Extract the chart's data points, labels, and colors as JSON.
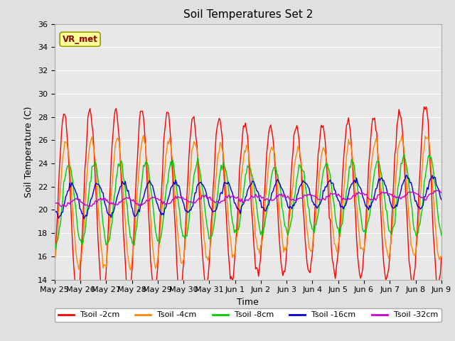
{
  "title": "Soil Temperatures Set 2",
  "xlabel": "Time",
  "ylabel": "Soil Temperature (C)",
  "ylim": [
    14,
    36
  ],
  "yticks": [
    14,
    16,
    18,
    20,
    22,
    24,
    26,
    28,
    30,
    32,
    34,
    36
  ],
  "num_days": 16,
  "colors": {
    "Tsoil -2cm": "#ff0000",
    "Tsoil -4cm": "#ff8800",
    "Tsoil -8cm": "#00cc00",
    "Tsoil -16cm": "#0000cc",
    "Tsoil -32cm": "#cc00cc"
  },
  "annotation_text": "VR_met",
  "bg_color": "#e0e0e0",
  "plot_bg_color": "#e8e8e8",
  "grid_color": "#ffffff",
  "xtick_labels": [
    "May 25",
    "May 26",
    "May 27",
    "May 28",
    "May 29",
    "May 30",
    "May 31",
    "Jun 1",
    "Jun 2",
    "Jun 3",
    "Jun 4",
    "Jun 5",
    "Jun 6",
    "Jun 7",
    "Jun 8",
    "Jun 9"
  ],
  "xtick_positions": [
    0,
    1,
    2,
    3,
    4,
    5,
    6,
    7,
    8,
    9,
    10,
    11,
    12,
    13,
    14,
    15
  ]
}
